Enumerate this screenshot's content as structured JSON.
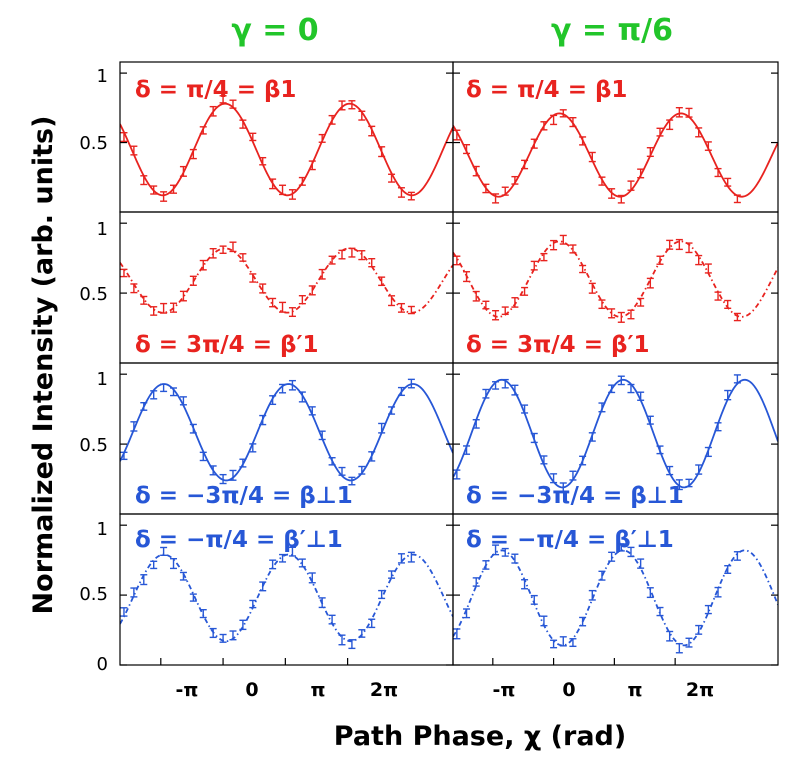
{
  "chart_data": {
    "type": "line",
    "xlabel": "Path Phase, χ (rad)",
    "ylabel": "Normalized Intensity (arb. units)",
    "xlim": [
      -5.2,
      11.6
    ],
    "ylim": [
      0,
      1.08
    ],
    "x_ticks": [
      {
        "value": -3.1416,
        "label": "-π"
      },
      {
        "value": 0,
        "label": "0"
      },
      {
        "value": 3.1416,
        "label": "π"
      },
      {
        "value": 6.2832,
        "label": "2π"
      }
    ],
    "column_titles": [
      "γ = 0",
      "γ = π/6"
    ],
    "rows": [
      {
        "label": "δ = π/4 = β1",
        "color": "#e8231f",
        "style": "solid",
        "y_ticks": [
          "1",
          "0.5"
        ]
      },
      {
        "label": "δ = 3π/4 = β′1",
        "color": "#e8231f",
        "style": "dashed",
        "y_ticks": [
          "1",
          "0.5"
        ]
      },
      {
        "label": "δ = −3π/4 = β⊥1",
        "color": "#2757d6",
        "style": "solid",
        "y_ticks": [
          "1",
          "0.5"
        ]
      },
      {
        "label": "δ = −π/4 = β′⊥1",
        "color": "#2757d6",
        "style": "dashed",
        "y_ticks": [
          "1",
          "0.5",
          "0"
        ]
      }
    ],
    "panels": [
      {
        "row": 0,
        "col": 0,
        "fit": {
          "mean": 0.45,
          "amp": 0.33,
          "phase": 0.1
        }
      },
      {
        "row": 0,
        "col": 1,
        "fit": {
          "mean": 0.41,
          "amp": 0.3,
          "phase": 0.3
        }
      },
      {
        "row": 1,
        "col": 0,
        "fit": {
          "mean": 0.59,
          "amp": 0.23,
          "phase": 0.1
        }
      },
      {
        "row": 1,
        "col": 1,
        "fit": {
          "mean": 0.6,
          "amp": 0.27,
          "phase": 0.3
        }
      },
      {
        "row": 2,
        "col": 0,
        "fit": {
          "mean": 0.585,
          "amp": 0.345,
          "phase": 3.3
        }
      },
      {
        "row": 2,
        "col": 1,
        "fit": {
          "mean": 0.575,
          "amp": 0.385,
          "phase": 3.6
        }
      },
      {
        "row": 3,
        "col": 0,
        "fit": {
          "mean": 0.48,
          "amp": 0.31,
          "phase": 3.3
        }
      },
      {
        "row": 3,
        "col": 1,
        "fit": {
          "mean": 0.48,
          "amp": 0.34,
          "phase": 3.6
        }
      }
    ],
    "points_x": [
      -5.0,
      -4.5,
      -4.0,
      -3.5,
      -3.0,
      -2.5,
      -2.0,
      -1.5,
      -1.0,
      -0.5,
      0.0,
      0.5,
      1.0,
      1.5,
      2.0,
      2.5,
      3.0,
      3.5,
      4.0,
      4.5,
      5.0,
      5.5,
      6.0,
      6.5,
      7.0,
      7.5,
      8.0,
      8.5,
      9.0,
      9.5
    ]
  }
}
